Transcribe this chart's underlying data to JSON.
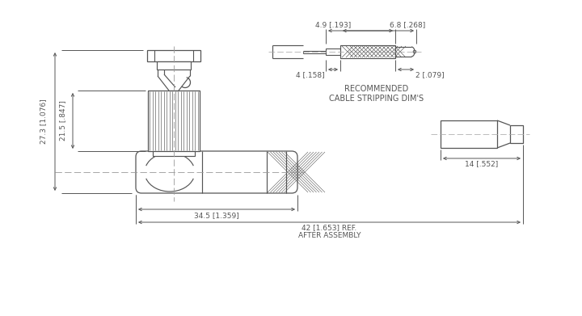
{
  "bg_color": "#ffffff",
  "line_color": "#555555",
  "dim_color": "#555555",
  "figsize": [
    7.2,
    3.91
  ],
  "dpi": 100,
  "annotations": {
    "dim_27_3": "27.3 [1.076]",
    "dim_21_5": "21.5 [.847]",
    "dim_34_5": "34.5 [1.359]",
    "dim_42": "42 [1.653] REF.",
    "after_assembly": "AFTER ASSEMBLY",
    "dim_4_9": "4.9 [.193]",
    "dim_4": "4 [.158]",
    "dim_6_8": "6.8 [.268]",
    "dim_2": "2 [.079]",
    "dim_14": "14 [.552]",
    "rec_title1": "RECOMMENDED",
    "rec_title2": "CABLE STRIPPING DIM'S"
  }
}
